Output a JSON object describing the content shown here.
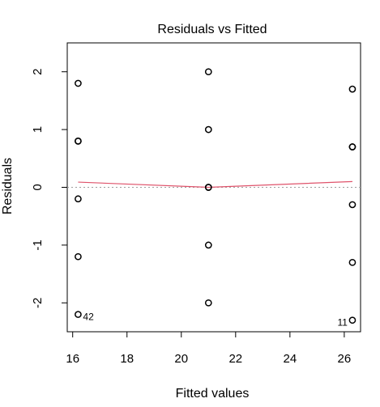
{
  "chart_data": {
    "type": "scatter",
    "title": "Residuals vs Fitted",
    "xlabel": "Fitted values",
    "ylabel": "Residuals",
    "xlim": [
      15.8,
      26.6
    ],
    "ylim": [
      -2.5,
      2.5
    ],
    "x_ticks": [
      16,
      18,
      20,
      22,
      24,
      26
    ],
    "y_ticks": [
      -2,
      -1,
      0,
      1,
      2
    ],
    "x_tick_labels": [
      "16",
      "18",
      "20",
      "22",
      "24",
      "26"
    ],
    "y_tick_labels": [
      "-2",
      "-1",
      "0",
      "1",
      "2"
    ],
    "points": [
      {
        "x": 16.2,
        "y": 1.8
      },
      {
        "x": 16.2,
        "y": 0.8
      },
      {
        "x": 16.2,
        "y": 0.8
      },
      {
        "x": 16.2,
        "y": -0.2
      },
      {
        "x": 16.2,
        "y": -1.2
      },
      {
        "x": 16.2,
        "y": -2.2
      },
      {
        "x": 21.0,
        "y": 2.0
      },
      {
        "x": 21.0,
        "y": 1.0
      },
      {
        "x": 21.0,
        "y": 0.0
      },
      {
        "x": 21.0,
        "y": 0.0
      },
      {
        "x": 21.0,
        "y": -1.0
      },
      {
        "x": 21.0,
        "y": -2.0
      },
      {
        "x": 26.3,
        "y": 1.7
      },
      {
        "x": 26.3,
        "y": 0.7
      },
      {
        "x": 26.3,
        "y": 0.7
      },
      {
        "x": 26.3,
        "y": -0.3
      },
      {
        "x": 26.3,
        "y": -1.3
      },
      {
        "x": 26.3,
        "y": -2.3
      }
    ],
    "smooth_line": {
      "color": "#df536b",
      "x": [
        16.2,
        21.0,
        26.3
      ],
      "y": [
        0.09,
        0.0,
        0.1
      ]
    },
    "reference_line": {
      "y": 0,
      "color": "#9e9e9e",
      "style": "dotted"
    },
    "annotations": [
      {
        "text": "42",
        "x": 16.2,
        "y": -2.2,
        "side": "right"
      },
      {
        "text": "11",
        "x": 26.3,
        "y": -2.3,
        "side": "left"
      }
    ],
    "grid": false,
    "legend": "none"
  }
}
